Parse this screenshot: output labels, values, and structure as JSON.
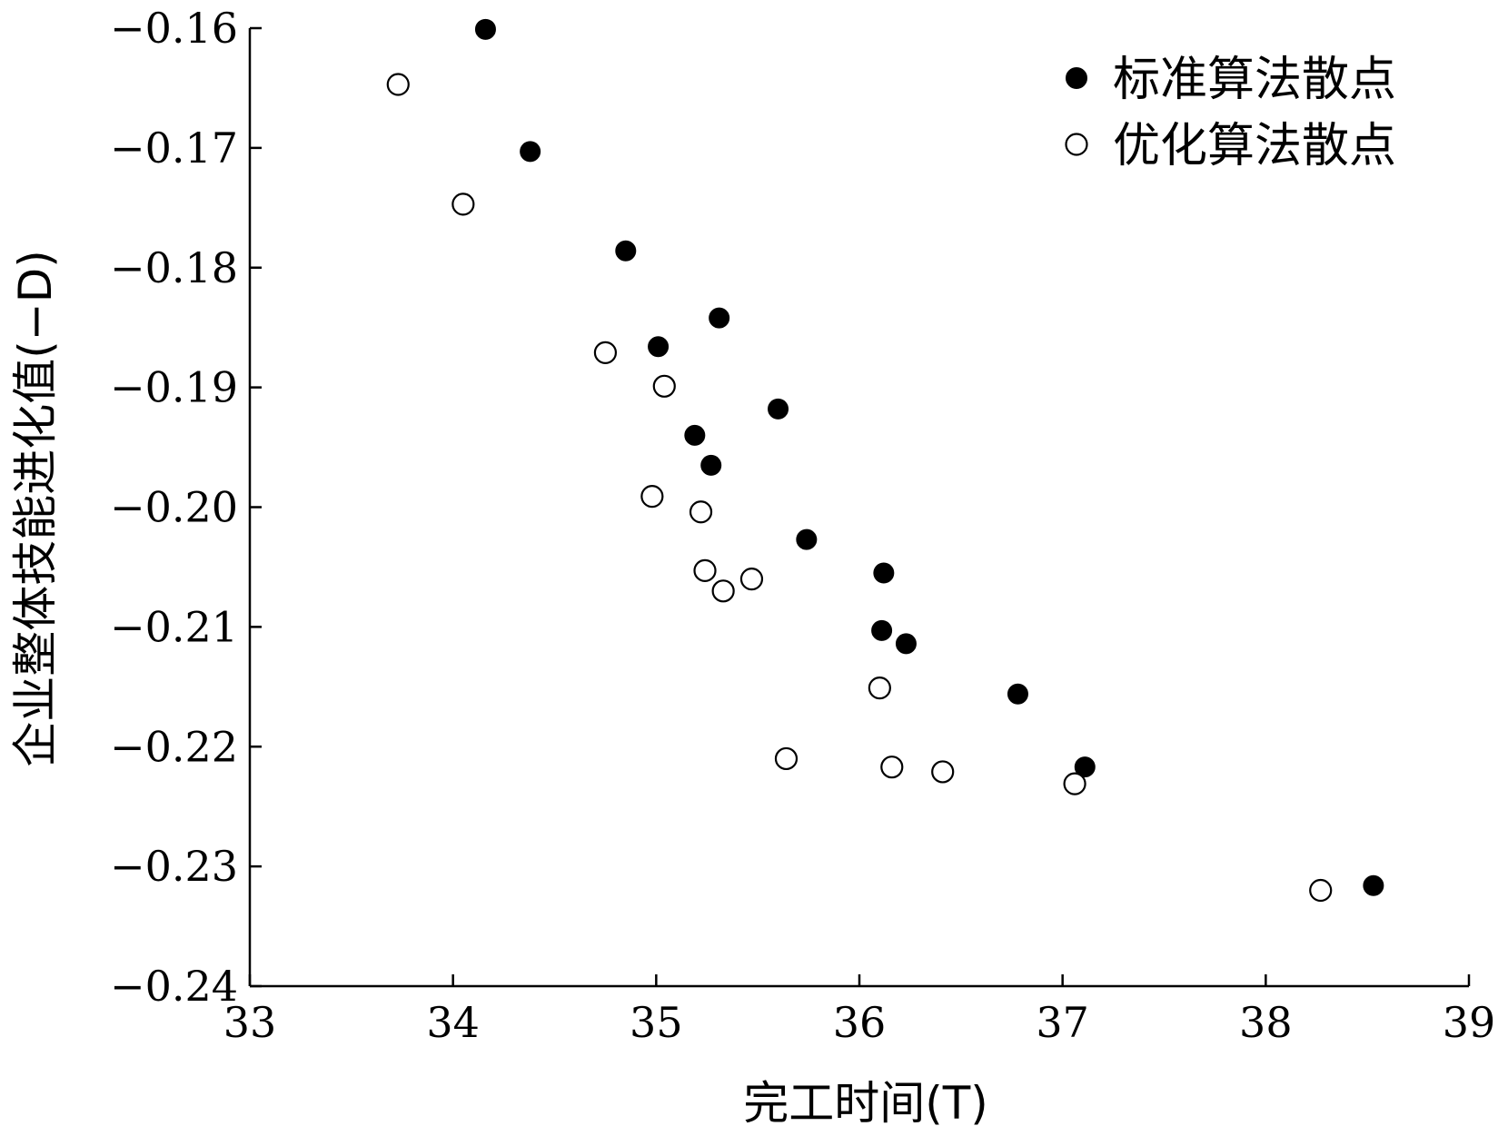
{
  "chart_data": {
    "type": "scatter",
    "title": "",
    "xlabel": "完工时间(T)",
    "ylabel": "企业整体技能进化值(−D)",
    "xlim": [
      33,
      39
    ],
    "ylim": [
      -0.24,
      -0.16
    ],
    "x_ticks": [
      33,
      34,
      35,
      36,
      37,
      38,
      39
    ],
    "x_tick_labels": [
      "33",
      "34",
      "35",
      "36",
      "37",
      "38",
      "39"
    ],
    "y_ticks": [
      -0.16,
      -0.17,
      -0.18,
      -0.19,
      -0.2,
      -0.21,
      -0.22,
      -0.23,
      -0.24
    ],
    "y_tick_labels": [
      "−0.16",
      "−0.17",
      "−0.18",
      "−0.19",
      "−0.20",
      "−0.21",
      "−0.22",
      "−0.23",
      "−0.24"
    ],
    "grid": false,
    "legend_position": "top-right",
    "series": [
      {
        "name": "标准算法散点",
        "marker": "filled-circle",
        "color": "#000000",
        "points": [
          {
            "x": 34.16,
            "y": -0.1601
          },
          {
            "x": 34.38,
            "y": -0.1703
          },
          {
            "x": 34.85,
            "y": -0.1786
          },
          {
            "x": 35.31,
            "y": -0.1842
          },
          {
            "x": 35.01,
            "y": -0.1866
          },
          {
            "x": 35.6,
            "y": -0.1918
          },
          {
            "x": 35.19,
            "y": -0.194
          },
          {
            "x": 35.27,
            "y": -0.1965
          },
          {
            "x": 35.74,
            "y": -0.2027
          },
          {
            "x": 36.12,
            "y": -0.2055
          },
          {
            "x": 36.11,
            "y": -0.2103
          },
          {
            "x": 36.23,
            "y": -0.2114
          },
          {
            "x": 36.78,
            "y": -0.2156
          },
          {
            "x": 37.11,
            "y": -0.2217
          },
          {
            "x": 38.53,
            "y": -0.2316
          }
        ]
      },
      {
        "name": "优化算法散点",
        "marker": "hollow-circle",
        "color": "#000000",
        "points": [
          {
            "x": 33.73,
            "y": -0.1647
          },
          {
            "x": 34.05,
            "y": -0.1747
          },
          {
            "x": 34.75,
            "y": -0.1871
          },
          {
            "x": 35.04,
            "y": -0.1899
          },
          {
            "x": 34.98,
            "y": -0.1991
          },
          {
            "x": 35.22,
            "y": -0.2004
          },
          {
            "x": 35.24,
            "y": -0.2053
          },
          {
            "x": 35.47,
            "y": -0.206
          },
          {
            "x": 35.33,
            "y": -0.207
          },
          {
            "x": 36.1,
            "y": -0.2151
          },
          {
            "x": 35.64,
            "y": -0.221
          },
          {
            "x": 36.16,
            "y": -0.2217
          },
          {
            "x": 36.41,
            "y": -0.2221
          },
          {
            "x": 37.06,
            "y": -0.2231
          },
          {
            "x": 38.27,
            "y": -0.232
          }
        ]
      }
    ]
  }
}
